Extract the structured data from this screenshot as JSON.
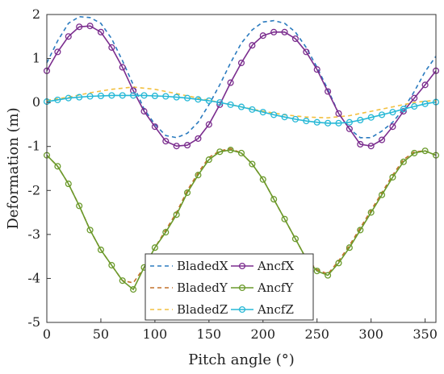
{
  "chart_data": {
    "type": "line",
    "title": "",
    "xlabel": "Pitch angle (°)",
    "ylabel": "Deformation (m)",
    "xlim": [
      0,
      360
    ],
    "ylim": [
      -5,
      2
    ],
    "xticks": [
      0,
      50,
      100,
      150,
      200,
      250,
      300,
      350
    ],
    "yticks": [
      2,
      1,
      0,
      -1,
      -2,
      -3,
      -4,
      -5
    ],
    "grid": false,
    "legend_position": "lower-center",
    "series": [
      {
        "name": "BladedX",
        "style": "dashed",
        "marker": false,
        "color": "#2b7bbf",
        "x": [
          0,
          10,
          20,
          30,
          40,
          50,
          60,
          70,
          80,
          90,
          100,
          110,
          120,
          130,
          140,
          150,
          160,
          170,
          180,
          190,
          200,
          210,
          220,
          230,
          240,
          250,
          260,
          270,
          280,
          290,
          300,
          310,
          320,
          330,
          340,
          350,
          360
        ],
        "y": [
          0.9,
          1.4,
          1.8,
          1.95,
          1.93,
          1.8,
          1.45,
          0.95,
          0.4,
          -0.15,
          -0.5,
          -0.75,
          -0.8,
          -0.7,
          -0.45,
          -0.05,
          0.4,
          0.9,
          1.35,
          1.65,
          1.83,
          1.86,
          1.8,
          1.6,
          1.25,
          0.8,
          0.3,
          -0.25,
          -0.6,
          -0.8,
          -0.8,
          -0.65,
          -0.45,
          -0.15,
          0.25,
          0.7,
          1.05
        ]
      },
      {
        "name": "BladedY",
        "style": "dashed",
        "marker": false,
        "color": "#c2702b",
        "x": [
          0,
          10,
          20,
          30,
          40,
          50,
          60,
          70,
          80,
          90,
          100,
          110,
          120,
          130,
          140,
          150,
          160,
          170,
          180,
          190,
          200,
          210,
          220,
          230,
          240,
          250,
          260,
          270,
          280,
          290,
          300,
          310,
          320,
          330,
          340,
          350,
          360
        ],
        "y": [
          -1.2,
          -1.45,
          -1.85,
          -2.35,
          -2.9,
          -3.35,
          -3.7,
          -4.05,
          -4.1,
          -3.75,
          -3.3,
          -2.9,
          -2.5,
          -2.0,
          -1.6,
          -1.25,
          -1.1,
          -1.05,
          -1.15,
          -1.4,
          -1.75,
          -2.2,
          -2.65,
          -3.1,
          -3.55,
          -3.8,
          -3.9,
          -3.6,
          -3.25,
          -2.85,
          -2.45,
          -2.05,
          -1.65,
          -1.3,
          -1.12,
          -1.1,
          -1.2
        ]
      },
      {
        "name": "BladedZ",
        "style": "dashed",
        "marker": false,
        "color": "#f2c040",
        "x": [
          0,
          20,
          40,
          60,
          80,
          100,
          120,
          140,
          160,
          180,
          200,
          220,
          240,
          260,
          280,
          300,
          320,
          340,
          360
        ],
        "y": [
          0.05,
          0.12,
          0.22,
          0.3,
          0.35,
          0.3,
          0.2,
          0.1,
          0.0,
          -0.1,
          -0.2,
          -0.28,
          -0.33,
          -0.35,
          -0.3,
          -0.2,
          -0.1,
          0.0,
          0.05
        ]
      },
      {
        "name": "AncfX",
        "style": "solid",
        "marker": true,
        "color": "#7b2d8e",
        "x": [
          0,
          10,
          20,
          30,
          40,
          50,
          60,
          70,
          80,
          90,
          100,
          110,
          120,
          130,
          140,
          150,
          160,
          170,
          180,
          190,
          200,
          210,
          220,
          230,
          240,
          250,
          260,
          270,
          280,
          290,
          300,
          310,
          320,
          330,
          340,
          350,
          360
        ],
        "y": [
          0.72,
          1.15,
          1.5,
          1.72,
          1.74,
          1.6,
          1.25,
          0.8,
          0.27,
          -0.2,
          -0.55,
          -0.88,
          -0.99,
          -0.97,
          -0.82,
          -0.5,
          -0.05,
          0.45,
          0.9,
          1.3,
          1.52,
          1.6,
          1.6,
          1.45,
          1.15,
          0.75,
          0.25,
          -0.25,
          -0.6,
          -0.95,
          -0.99,
          -0.85,
          -0.55,
          -0.2,
          0.1,
          0.4,
          0.72
        ]
      },
      {
        "name": "AncfY",
        "style": "solid",
        "marker": true,
        "color": "#6a9a2b",
        "x": [
          0,
          10,
          20,
          30,
          40,
          50,
          60,
          70,
          80,
          90,
          100,
          110,
          120,
          130,
          140,
          150,
          160,
          170,
          180,
          190,
          200,
          210,
          220,
          230,
          240,
          250,
          260,
          270,
          280,
          290,
          300,
          310,
          320,
          330,
          340,
          350,
          360
        ],
        "y": [
          -1.2,
          -1.45,
          -1.85,
          -2.35,
          -2.9,
          -3.35,
          -3.7,
          -4.05,
          -4.25,
          -3.75,
          -3.3,
          -2.95,
          -2.55,
          -2.05,
          -1.65,
          -1.3,
          -1.12,
          -1.08,
          -1.15,
          -1.4,
          -1.75,
          -2.2,
          -2.65,
          -3.1,
          -3.55,
          -3.83,
          -3.93,
          -3.65,
          -3.3,
          -2.9,
          -2.5,
          -2.1,
          -1.7,
          -1.35,
          -1.15,
          -1.1,
          -1.2
        ]
      },
      {
        "name": "AncfZ",
        "style": "solid",
        "marker": true,
        "color": "#26b8d6",
        "x": [
          0,
          10,
          20,
          30,
          40,
          50,
          60,
          70,
          80,
          90,
          100,
          110,
          120,
          130,
          140,
          150,
          160,
          170,
          180,
          190,
          200,
          210,
          220,
          230,
          240,
          250,
          260,
          270,
          280,
          290,
          300,
          310,
          320,
          330,
          340,
          350,
          360
        ],
        "y": [
          0.02,
          0.06,
          0.1,
          0.12,
          0.14,
          0.15,
          0.16,
          0.16,
          0.16,
          0.16,
          0.15,
          0.14,
          0.12,
          0.1,
          0.07,
          0.04,
          0.0,
          -0.05,
          -0.1,
          -0.16,
          -0.22,
          -0.28,
          -0.33,
          -0.38,
          -0.42,
          -0.45,
          -0.47,
          -0.47,
          -0.45,
          -0.4,
          -0.34,
          -0.28,
          -0.22,
          -0.15,
          -0.09,
          -0.03,
          0.01
        ]
      }
    ]
  }
}
